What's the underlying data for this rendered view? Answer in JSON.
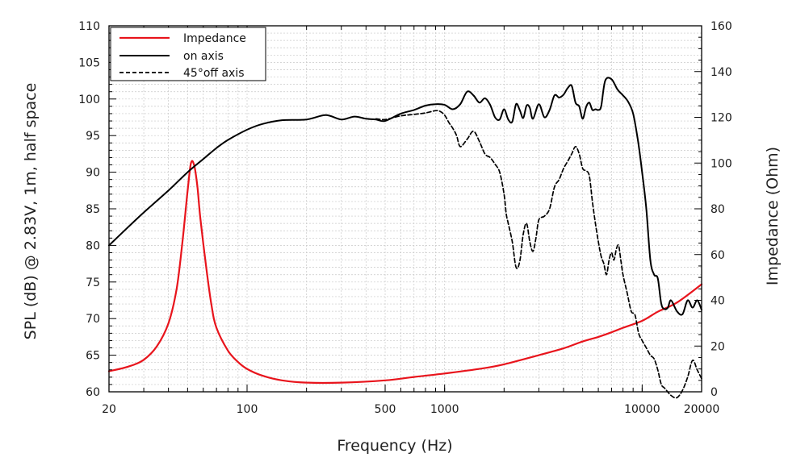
{
  "chart_data": {
    "type": "line",
    "title": "",
    "xlabel": "Frequency (Hz)",
    "ylabel": "SPL (dB) @ 2.83V, 1m, half space",
    "y2label": "Impedance (Ohm)",
    "xscale": "log",
    "xlim": [
      20,
      20000
    ],
    "ylim": [
      60,
      110
    ],
    "y2lim": [
      0,
      160
    ],
    "grid": true,
    "legend_position": "top-left",
    "x_ticks": [
      {
        "value": 20,
        "label": "20"
      },
      {
        "value": 100,
        "label": "100"
      },
      {
        "value": 500,
        "label": "500"
      },
      {
        "value": 1000,
        "label": "1000"
      },
      {
        "value": 10000,
        "label": "10000"
      },
      {
        "value": 20000,
        "label": "20000"
      }
    ],
    "y_ticks": [
      {
        "value": 60,
        "label": "60"
      },
      {
        "value": 65,
        "label": "65"
      },
      {
        "value": 70,
        "label": "70"
      },
      {
        "value": 75,
        "label": "75"
      },
      {
        "value": 80,
        "label": "80"
      },
      {
        "value": 85,
        "label": "85"
      },
      {
        "value": 90,
        "label": "90"
      },
      {
        "value": 95,
        "label": "95"
      },
      {
        "value": 100,
        "label": "100"
      },
      {
        "value": 105,
        "label": "105"
      },
      {
        "value": 110,
        "label": "110"
      }
    ],
    "y2_ticks": [
      {
        "value": 0,
        "label": "0"
      },
      {
        "value": 20,
        "label": "20"
      },
      {
        "value": 40,
        "label": "40"
      },
      {
        "value": 60,
        "label": "60"
      },
      {
        "value": 80,
        "label": "80"
      },
      {
        "value": 100,
        "label": "100"
      },
      {
        "value": 120,
        "label": "120"
      },
      {
        "value": 140,
        "label": "140"
      },
      {
        "value": 160,
        "label": "160"
      }
    ],
    "series": [
      {
        "name": "Impedance",
        "axis": "right",
        "color": "#e8141c",
        "style": "solid",
        "x": [
          20,
          25,
          30,
          35,
          40,
          44,
          47,
          50,
          52,
          54,
          56,
          58,
          62,
          66,
          70,
          80,
          90,
          100,
          120,
          150,
          200,
          300,
          500,
          700,
          1000,
          1500,
          2000,
          3000,
          4000,
          5000,
          6000,
          7000,
          8000,
          10000,
          12000,
          15000,
          20000
        ],
        "values": [
          9,
          11,
          14,
          20,
          30,
          45,
          65,
          88,
          100,
          99,
          90,
          76,
          55,
          38,
          28,
          18,
          13,
          10,
          7,
          5,
          4,
          4,
          5,
          6.5,
          8,
          10,
          12,
          16,
          19,
          22,
          24,
          26,
          28,
          31,
          35,
          39,
          47
        ]
      },
      {
        "name": "on axis",
        "axis": "left",
        "color": "#000000",
        "style": "solid",
        "x": [
          20,
          25,
          30,
          40,
          50,
          60,
          70,
          80,
          100,
          120,
          150,
          200,
          250,
          300,
          350,
          400,
          450,
          500,
          600,
          700,
          800,
          900,
          1000,
          1100,
          1200,
          1300,
          1400,
          1500,
          1600,
          1700,
          1800,
          1900,
          2000,
          2100,
          2200,
          2300,
          2400,
          2500,
          2600,
          2700,
          2800,
          3000,
          3200,
          3400,
          3600,
          3800,
          4000,
          4200,
          4400,
          4600,
          4800,
          5000,
          5200,
          5400,
          5600,
          5800,
          6000,
          6200,
          6500,
          7000,
          7500,
          8000,
          8500,
          9000,
          9500,
          10000,
          10500,
          11000,
          11500,
          12000,
          12500,
          13000,
          13500,
          14000,
          15000,
          16000,
          17000,
          18000,
          19000,
          20000
        ],
        "values": [
          80,
          82.5,
          84.5,
          87.5,
          90,
          91.8,
          93.3,
          94.4,
          95.8,
          96.6,
          97.1,
          97.2,
          97.8,
          97.2,
          97.6,
          97.3,
          97.2,
          97,
          98,
          98.5,
          99.1,
          99.3,
          99.2,
          98.6,
          99.3,
          101,
          100.5,
          99.5,
          100.1,
          99.2,
          97.5,
          97.2,
          98.6,
          97.2,
          96.9,
          99.3,
          98.5,
          97.4,
          99.1,
          98.8,
          97.3,
          99.3,
          97.5,
          98.5,
          100.5,
          100.2,
          100.6,
          101.5,
          101.8,
          99.5,
          99,
          97.3,
          98.9,
          99.5,
          98.5,
          98.6,
          98.5,
          99,
          102.5,
          102.7,
          101.3,
          100.5,
          99.6,
          98,
          94.5,
          90,
          85,
          78,
          76,
          75.5,
          72,
          71.3,
          71.5,
          72.5,
          71,
          70.6,
          72.5,
          71.5,
          72.5,
          71.2
        ]
      },
      {
        "name": "45°off axis",
        "axis": "left",
        "color": "#000000",
        "style": "dashed",
        "x": [
          450,
          500,
          600,
          700,
          800,
          900,
          950,
          1000,
          1050,
          1100,
          1150,
          1200,
          1300,
          1400,
          1500,
          1600,
          1700,
          1800,
          1900,
          2000,
          2050,
          2100,
          2200,
          2300,
          2400,
          2500,
          2600,
          2700,
          2800,
          2900,
          3000,
          3200,
          3400,
          3600,
          3800,
          4000,
          4200,
          4400,
          4600,
          4800,
          5000,
          5200,
          5400,
          5600,
          5800,
          6000,
          6200,
          6400,
          6600,
          6800,
          7000,
          7200,
          7400,
          7600,
          7800,
          8000,
          8400,
          8800,
          9200,
          9600,
          10000,
          10500,
          11000,
          11500,
          12000,
          12500,
          13000,
          14000,
          15000,
          16000,
          17000,
          18000,
          19000,
          20000
        ],
        "values": [
          97.3,
          97.2,
          97.7,
          97.9,
          98.1,
          98.4,
          98.3,
          97.8,
          96.8,
          96,
          95,
          93.5,
          94.5,
          95.6,
          94.2,
          92.5,
          92,
          91.1,
          90,
          87,
          84.3,
          83,
          80.5,
          77,
          77.8,
          81.5,
          83,
          80.5,
          79.2,
          81,
          83.5,
          84,
          85,
          88,
          89,
          90.5,
          91.5,
          92.5,
          93.5,
          92.5,
          90.5,
          90.2,
          89.5,
          86,
          83,
          80.5,
          78.5,
          77.5,
          76,
          78,
          79,
          78,
          79.5,
          80,
          78,
          76,
          73.5,
          71,
          70.5,
          68,
          67,
          66,
          65,
          64.5,
          63,
          61,
          60.5,
          59.5,
          59.2,
          60.2,
          62,
          64.3,
          63,
          61.8
        ]
      }
    ]
  }
}
